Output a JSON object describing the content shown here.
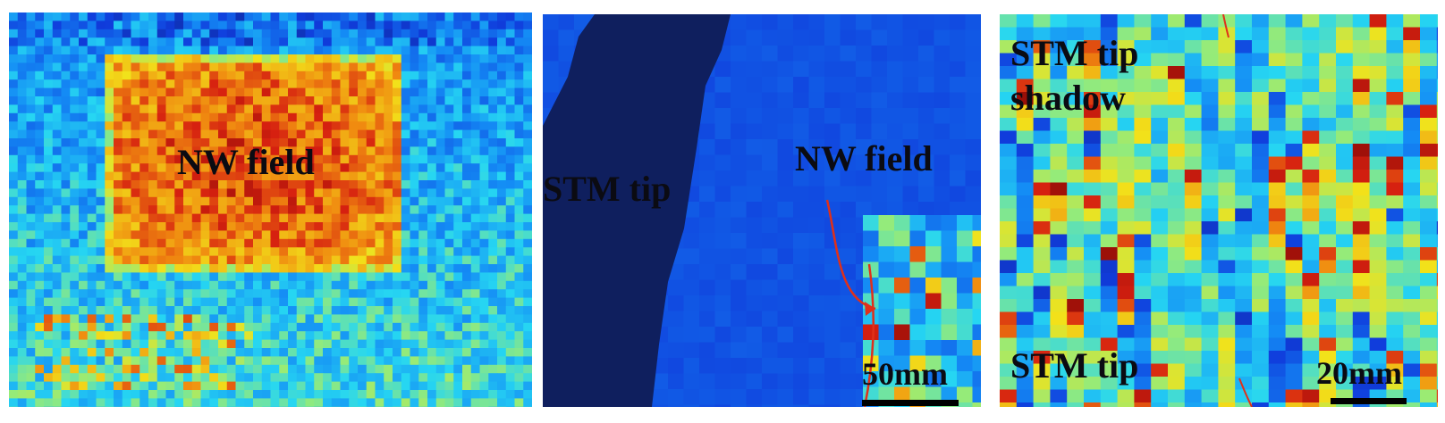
{
  "panels": {
    "a": {
      "nw_label": "NW field"
    },
    "b": {
      "tip_label": "STM tip",
      "nw_label": "NW field",
      "scale_label": "50mm"
    },
    "c": {
      "shadow_label_line1": "STM tip",
      "shadow_label_line2": "shadow",
      "tip_label": "STM tip",
      "scale_label": "20mm"
    }
  },
  "colors": {
    "dark_navy": "#0e1f5c",
    "blue": "#1066ee",
    "cyan": "#26d6f2",
    "yellow": "#f2e21a",
    "orange": "#f08a10",
    "red": "#d62010",
    "dark_red": "#9a0e08",
    "arrow": "#e0301a"
  }
}
